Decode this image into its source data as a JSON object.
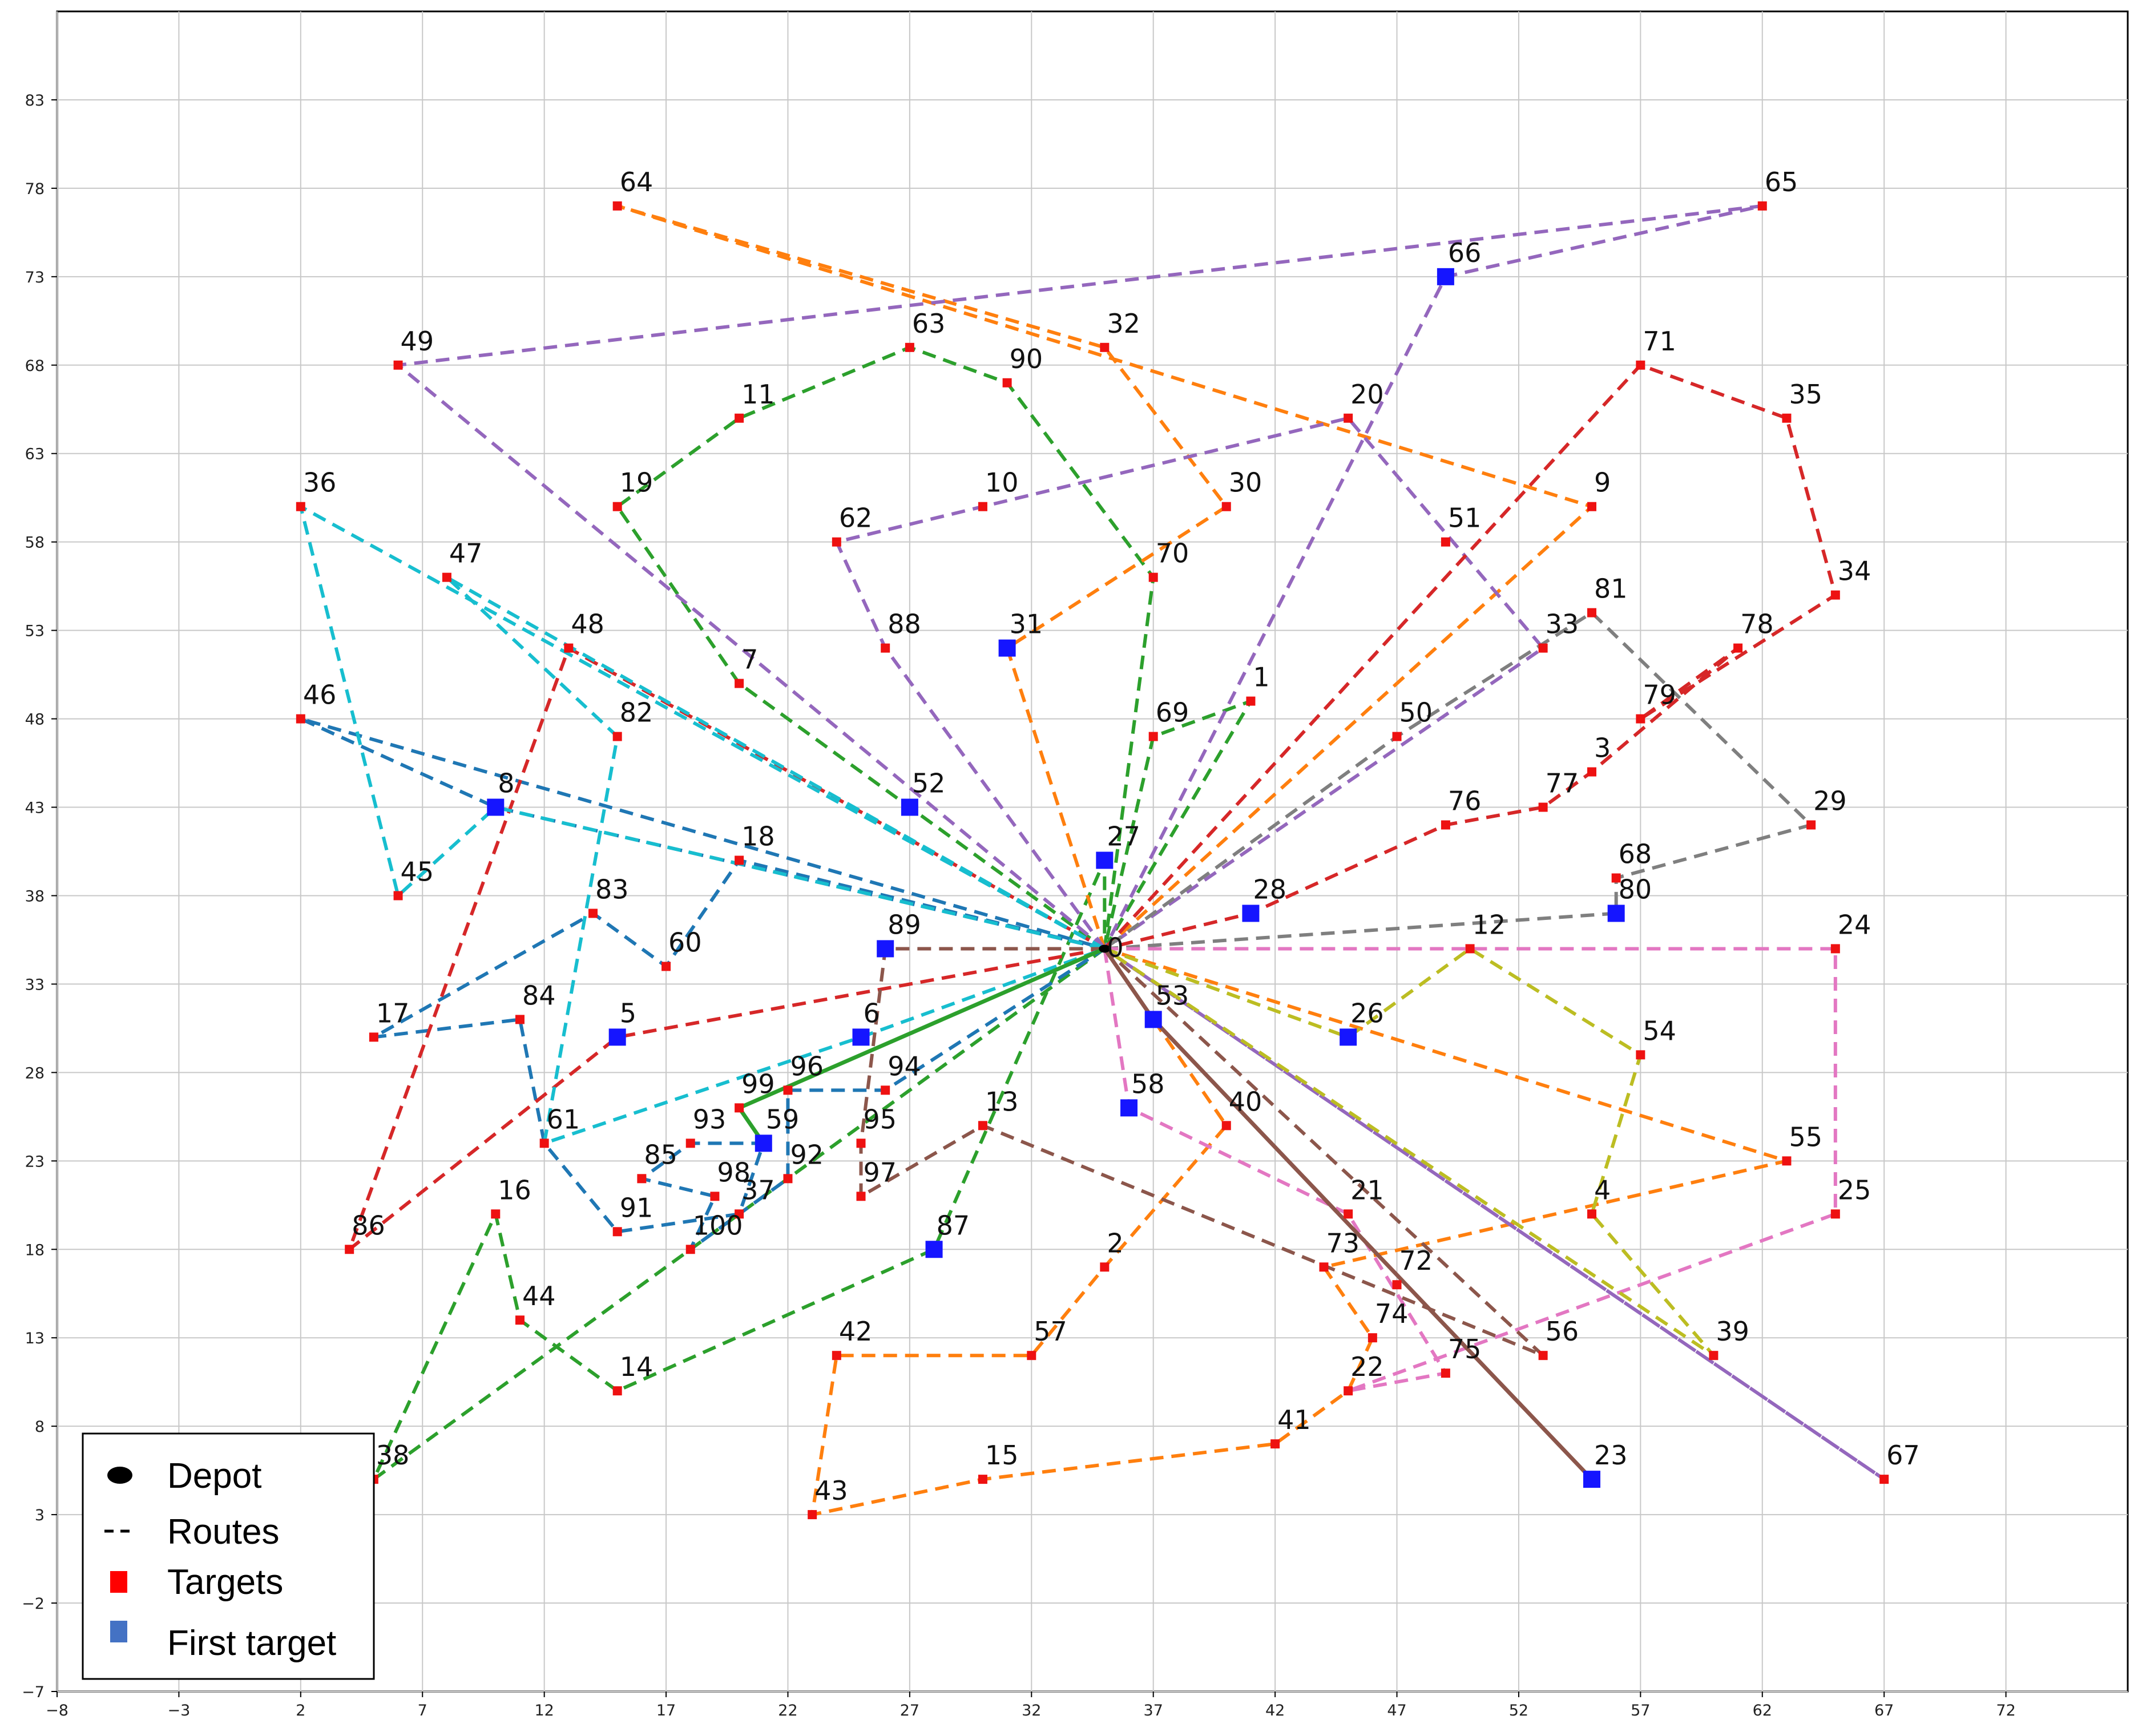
{
  "chart_data": {
    "type": "scatter",
    "title": "",
    "xlabel": "",
    "ylabel": "",
    "xlim": [
      -8,
      77
    ],
    "ylim": [
      -7,
      88
    ],
    "x_ticks": [
      -8,
      -3,
      2,
      7,
      12,
      17,
      22,
      27,
      32,
      37,
      42,
      47,
      52,
      57,
      62,
      67,
      72
    ],
    "y_ticks": [
      -7,
      -2,
      3,
      8,
      13,
      18,
      23,
      28,
      33,
      38,
      43,
      48,
      53,
      58,
      63,
      68,
      73,
      78,
      83
    ],
    "grid": true,
    "legend_position": "lower-left",
    "legend": [
      {
        "label": "Depot",
        "marker": "ellipse",
        "color": "#000000"
      },
      {
        "label": "Routes",
        "marker": "dash",
        "color": "#000000"
      },
      {
        "label": "Targets",
        "marker": "square",
        "color": "#ff0000"
      },
      {
        "label": "First target",
        "marker": "square",
        "color": "#4472c4"
      }
    ],
    "depot": {
      "id": "0",
      "x": 35,
      "y": 35
    },
    "targets": [
      {
        "id": "1",
        "x": 41,
        "y": 49
      },
      {
        "id": "2",
        "x": 35,
        "y": 17
      },
      {
        "id": "3",
        "x": 55,
        "y": 45
      },
      {
        "id": "4",
        "x": 55,
        "y": 20
      },
      {
        "id": "5",
        "x": 15,
        "y": 30
      },
      {
        "id": "6",
        "x": 25,
        "y": 30
      },
      {
        "id": "7",
        "x": 20,
        "y": 50
      },
      {
        "id": "8",
        "x": 10,
        "y": 43
      },
      {
        "id": "9",
        "x": 55,
        "y": 60
      },
      {
        "id": "10",
        "x": 30,
        "y": 60
      },
      {
        "id": "11",
        "x": 20,
        "y": 65
      },
      {
        "id": "12",
        "x": 50,
        "y": 35
      },
      {
        "id": "13",
        "x": 30,
        "y": 25
      },
      {
        "id": "14",
        "x": 15,
        "y": 10
      },
      {
        "id": "15",
        "x": 30,
        "y": 5
      },
      {
        "id": "16",
        "x": 10,
        "y": 20
      },
      {
        "id": "17",
        "x": 5,
        "y": 30
      },
      {
        "id": "18",
        "x": 20,
        "y": 40
      },
      {
        "id": "19",
        "x": 15,
        "y": 60
      },
      {
        "id": "20",
        "x": 45,
        "y": 65
      },
      {
        "id": "21",
        "x": 45,
        "y": 20
      },
      {
        "id": "22",
        "x": 45,
        "y": 10
      },
      {
        "id": "23",
        "x": 55,
        "y": 5
      },
      {
        "id": "24",
        "x": 65,
        "y": 35
      },
      {
        "id": "25",
        "x": 65,
        "y": 20
      },
      {
        "id": "26",
        "x": 45,
        "y": 30
      },
      {
        "id": "27",
        "x": 35,
        "y": 40
      },
      {
        "id": "28",
        "x": 41,
        "y": 37
      },
      {
        "id": "29",
        "x": 64,
        "y": 42
      },
      {
        "id": "30",
        "x": 40,
        "y": 60
      },
      {
        "id": "31",
        "x": 31,
        "y": 52
      },
      {
        "id": "32",
        "x": 35,
        "y": 69
      },
      {
        "id": "33",
        "x": 53,
        "y": 52
      },
      {
        "id": "34",
        "x": 65,
        "y": 55
      },
      {
        "id": "35",
        "x": 63,
        "y": 65
      },
      {
        "id": "36",
        "x": 2,
        "y": 60
      },
      {
        "id": "37",
        "x": 20,
        "y": 20
      },
      {
        "id": "38",
        "x": 5,
        "y": 5
      },
      {
        "id": "39",
        "x": 60,
        "y": 12
      },
      {
        "id": "40",
        "x": 40,
        "y": 25
      },
      {
        "id": "41",
        "x": 42,
        "y": 7
      },
      {
        "id": "42",
        "x": 24,
        "y": 12
      },
      {
        "id": "43",
        "x": 23,
        "y": 3
      },
      {
        "id": "44",
        "x": 11,
        "y": 14
      },
      {
        "id": "45",
        "x": 6,
        "y": 38
      },
      {
        "id": "46",
        "x": 2,
        "y": 48
      },
      {
        "id": "47",
        "x": 8,
        "y": 56
      },
      {
        "id": "48",
        "x": 13,
        "y": 52
      },
      {
        "id": "49",
        "x": 6,
        "y": 68
      },
      {
        "id": "50",
        "x": 47,
        "y": 47
      },
      {
        "id": "51",
        "x": 49,
        "y": 58
      },
      {
        "id": "52",
        "x": 27,
        "y": 43
      },
      {
        "id": "53",
        "x": 37,
        "y": 31
      },
      {
        "id": "54",
        "x": 57,
        "y": 29
      },
      {
        "id": "55",
        "x": 63,
        "y": 23
      },
      {
        "id": "56",
        "x": 53,
        "y": 12
      },
      {
        "id": "57",
        "x": 32,
        "y": 12
      },
      {
        "id": "58",
        "x": 36,
        "y": 26
      },
      {
        "id": "59",
        "x": 21,
        "y": 24
      },
      {
        "id": "60",
        "x": 17,
        "y": 34
      },
      {
        "id": "61",
        "x": 12,
        "y": 24
      },
      {
        "id": "62",
        "x": 24,
        "y": 58
      },
      {
        "id": "63",
        "x": 27,
        "y": 69
      },
      {
        "id": "64",
        "x": 15,
        "y": 77
      },
      {
        "id": "65",
        "x": 62,
        "y": 77
      },
      {
        "id": "66",
        "x": 49,
        "y": 73
      },
      {
        "id": "67",
        "x": 67,
        "y": 5
      },
      {
        "id": "68",
        "x": 56,
        "y": 39
      },
      {
        "id": "69",
        "x": 37,
        "y": 47
      },
      {
        "id": "70",
        "x": 37,
        "y": 56
      },
      {
        "id": "71",
        "x": 57,
        "y": 68
      },
      {
        "id": "72",
        "x": 47,
        "y": 16
      },
      {
        "id": "73",
        "x": 44,
        "y": 17
      },
      {
        "id": "74",
        "x": 46,
        "y": 13
      },
      {
        "id": "75",
        "x": 49,
        "y": 11
      },
      {
        "id": "76",
        "x": 49,
        "y": 42
      },
      {
        "id": "77",
        "x": 53,
        "y": 43
      },
      {
        "id": "78",
        "x": 61,
        "y": 52
      },
      {
        "id": "79",
        "x": 57,
        "y": 48
      },
      {
        "id": "80",
        "x": 56,
        "y": 37
      },
      {
        "id": "81",
        "x": 55,
        "y": 54
      },
      {
        "id": "82",
        "x": 15,
        "y": 47
      },
      {
        "id": "83",
        "x": 14,
        "y": 37
      },
      {
        "id": "84",
        "x": 11,
        "y": 31
      },
      {
        "id": "85",
        "x": 16,
        "y": 22
      },
      {
        "id": "86",
        "x": 4,
        "y": 18
      },
      {
        "id": "87",
        "x": 28,
        "y": 18
      },
      {
        "id": "88",
        "x": 26,
        "y": 52
      },
      {
        "id": "89",
        "x": 26,
        "y": 35
      },
      {
        "id": "90",
        "x": 31,
        "y": 67
      },
      {
        "id": "91",
        "x": 15,
        "y": 19
      },
      {
        "id": "92",
        "x": 22,
        "y": 22
      },
      {
        "id": "93",
        "x": 18,
        "y": 24
      },
      {
        "id": "94",
        "x": 26,
        "y": 27
      },
      {
        "id": "95",
        "x": 25,
        "y": 24
      },
      {
        "id": "96",
        "x": 22,
        "y": 27
      },
      {
        "id": "97",
        "x": 25,
        "y": 21
      },
      {
        "id": "98",
        "x": 19,
        "y": 21
      },
      {
        "id": "99",
        "x": 20,
        "y": 26
      },
      {
        "id": "100",
        "x": 18,
        "y": 18
      }
    ],
    "first_targets": [
      "8",
      "52",
      "27",
      "89",
      "6",
      "5",
      "53",
      "58",
      "26",
      "28",
      "80",
      "66",
      "31",
      "87",
      "59",
      "23"
    ],
    "series": [
      {
        "color": "#2ca02c",
        "route": [
          "0",
          "1",
          "69",
          "0"
        ]
      },
      {
        "color": "#2ca02c",
        "route": [
          "0",
          "70",
          "90",
          "63",
          "11",
          "19",
          "7",
          "52",
          "0"
        ]
      },
      {
        "color": "#2ca02c",
        "route": [
          "0",
          "38",
          "16",
          "44",
          "14",
          "87",
          "27",
          "0"
        ]
      },
      {
        "color": "#1f77b4",
        "route": [
          "0",
          "8",
          "46",
          "0"
        ]
      },
      {
        "color": "#1f77b4",
        "route": [
          "0",
          "18",
          "60",
          "83",
          "17",
          "84",
          "61",
          "91",
          "37",
          "59",
          "93",
          "85",
          "98",
          "100",
          "92",
          "96",
          "94",
          "0"
        ]
      },
      {
        "color": "#ff7f0e",
        "route": [
          "0",
          "9",
          "64",
          "32",
          "30",
          "31",
          "0"
        ]
      },
      {
        "color": "#ff7f0e",
        "route": [
          "0",
          "40",
          "2",
          "57",
          "42",
          "43",
          "15",
          "41",
          "22",
          "74",
          "73",
          "55",
          "0"
        ]
      },
      {
        "color": "#9467bd",
        "route": [
          "0",
          "49",
          "65",
          "66",
          "0"
        ]
      },
      {
        "color": "#9467bd",
        "route": [
          "0",
          "88",
          "62",
          "10",
          "20",
          "33",
          "0"
        ]
      },
      {
        "color": "#9467bd",
        "route": [
          "0",
          "67",
          "0"
        ]
      },
      {
        "color": "#d62728",
        "route": [
          "0",
          "71",
          "35",
          "34",
          "79",
          "78",
          "3",
          "77",
          "76",
          "28",
          "0"
        ]
      },
      {
        "color": "#d62728",
        "route": [
          "0",
          "5",
          "86",
          "48",
          "0"
        ]
      },
      {
        "color": "#17becf",
        "route": [
          "0",
          "36",
          "45",
          "8",
          "0"
        ]
      },
      {
        "color": "#17becf",
        "route": [
          "0",
          "47",
          "82",
          "61",
          "6",
          "0"
        ]
      },
      {
        "color": "#7f7f7f",
        "route": [
          "0",
          "80",
          "68",
          "29",
          "81",
          "50",
          "0"
        ]
      },
      {
        "color": "#e377c2",
        "route": [
          "0",
          "24",
          "25",
          "22",
          "75",
          "21",
          "58",
          "0"
        ]
      },
      {
        "color": "#bcbd22",
        "route": [
          "0",
          "26",
          "12",
          "54",
          "4",
          "39",
          "0"
        ]
      },
      {
        "color": "#8c564b",
        "route": [
          "0",
          "89",
          "95",
          "97",
          "13",
          "56",
          "0"
        ]
      },
      {
        "color": "#8c564b",
        "route": [
          "0",
          "53",
          "23"
        ],
        "style": "solid"
      },
      {
        "color": "#2ca02c",
        "route": [
          "0",
          "99",
          "59"
        ],
        "style": "solid"
      }
    ]
  }
}
